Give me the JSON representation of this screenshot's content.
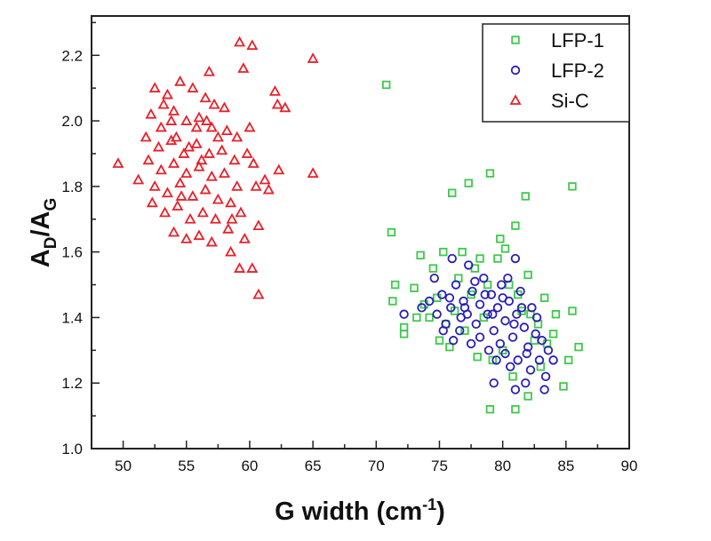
{
  "chart_data": {
    "type": "scatter",
    "title": "",
    "xlabel": {
      "main": "G width (cm",
      "sup": "-1",
      "end": ")"
    },
    "ylabel": {
      "a": "A",
      "sub1": "D",
      "slash": "/A",
      "sub2": "G"
    },
    "xlim": [
      47.5,
      90
    ],
    "ylim": [
      1.0,
      2.32
    ],
    "xticks": [
      "50",
      "55",
      "60",
      "65",
      "70",
      "75",
      "80",
      "85",
      "90"
    ],
    "xtick_values": [
      50,
      55,
      60,
      65,
      70,
      75,
      80,
      85,
      90
    ],
    "yticks": [
      "1.0",
      "1.2",
      "1.4",
      "1.6",
      "1.8",
      "2.0",
      "2.2"
    ],
    "ytick_values": [
      1.0,
      1.2,
      1.4,
      1.6,
      1.8,
      2.0,
      2.2
    ],
    "grid": false,
    "legend": "top-right",
    "series": [
      {
        "name": "LFP-1",
        "marker": "square",
        "color": "#3ec94a",
        "points": [
          [
            70.8,
            2.11
          ],
          [
            71.2,
            1.66
          ],
          [
            76,
            1.78
          ],
          [
            77.3,
            1.81
          ],
          [
            79,
            1.84
          ],
          [
            81.8,
            1.77
          ],
          [
            85.5,
            1.8
          ],
          [
            81,
            1.68
          ],
          [
            79.8,
            1.64
          ],
          [
            71.5,
            1.5
          ],
          [
            71.3,
            1.45
          ],
          [
            72.2,
            1.37
          ],
          [
            72.2,
            1.35
          ],
          [
            79,
            1.12
          ],
          [
            81,
            1.12
          ],
          [
            84.8,
            1.19
          ],
          [
            86,
            1.31
          ],
          [
            85.5,
            1.42
          ],
          [
            85.2,
            1.27
          ],
          [
            82,
            1.16
          ],
          [
            78,
            1.28
          ],
          [
            73.5,
            1.59
          ],
          [
            74.5,
            1.55
          ],
          [
            75.3,
            1.6
          ],
          [
            76.8,
            1.6
          ],
          [
            78.2,
            1.58
          ],
          [
            80.2,
            1.61
          ],
          [
            82,
            1.53
          ],
          [
            83.3,
            1.46
          ],
          [
            84.2,
            1.41
          ],
          [
            73,
            1.49
          ],
          [
            73.8,
            1.44
          ],
          [
            74.2,
            1.4
          ],
          [
            75,
            1.33
          ],
          [
            75.8,
            1.31
          ],
          [
            76.5,
            1.52
          ],
          [
            77.5,
            1.47
          ],
          [
            78.8,
            1.5
          ],
          [
            80.5,
            1.5
          ],
          [
            81.5,
            1.42
          ],
          [
            82.8,
            1.38
          ],
          [
            83.5,
            1.32
          ],
          [
            83,
            1.25
          ],
          [
            80,
            1.3
          ],
          [
            79.2,
            1.27
          ],
          [
            77,
            1.36
          ],
          [
            74.8,
            1.46
          ],
          [
            76.2,
            1.42
          ],
          [
            78.5,
            1.4
          ],
          [
            81.2,
            1.47
          ],
          [
            82.5,
            1.33
          ],
          [
            84,
            1.35
          ],
          [
            80.8,
            1.22
          ],
          [
            77.8,
            1.55
          ],
          [
            75.5,
            1.38
          ],
          [
            73.2,
            1.4
          ],
          [
            79.6,
            1.58
          ],
          [
            82.2,
            1.41
          ]
        ]
      },
      {
        "name": "LFP-2",
        "marker": "circle",
        "color": "#2a1fb5",
        "points": [
          [
            72.2,
            1.41
          ],
          [
            76,
            1.58
          ],
          [
            77.3,
            1.56
          ],
          [
            81,
            1.58
          ],
          [
            81,
            1.18
          ],
          [
            83.3,
            1.18
          ],
          [
            84,
            1.27
          ],
          [
            79.3,
            1.2
          ],
          [
            74.2,
            1.45
          ],
          [
            74.8,
            1.41
          ],
          [
            75.2,
            1.47
          ],
          [
            75.5,
            1.38
          ],
          [
            75.9,
            1.43
          ],
          [
            76.3,
            1.5
          ],
          [
            76.6,
            1.36
          ],
          [
            76.9,
            1.45
          ],
          [
            77.2,
            1.41
          ],
          [
            77.6,
            1.48
          ],
          [
            77.9,
            1.38
          ],
          [
            78.2,
            1.44
          ],
          [
            78.5,
            1.52
          ],
          [
            78.8,
            1.41
          ],
          [
            79.1,
            1.47
          ],
          [
            79.3,
            1.36
          ],
          [
            79.6,
            1.43
          ],
          [
            79.9,
            1.5
          ],
          [
            80.2,
            1.39
          ],
          [
            80.5,
            1.45
          ],
          [
            80.8,
            1.34
          ],
          [
            81.1,
            1.41
          ],
          [
            81.4,
            1.48
          ],
          [
            81.7,
            1.37
          ],
          [
            82,
            1.31
          ],
          [
            82.3,
            1.43
          ],
          [
            82.6,
            1.35
          ],
          [
            82.9,
            1.27
          ],
          [
            83.1,
            1.33
          ],
          [
            83.4,
            1.22
          ],
          [
            82.2,
            1.24
          ],
          [
            81.8,
            1.2
          ],
          [
            81.2,
            1.27
          ],
          [
            80.6,
            1.25
          ],
          [
            80.2,
            1.29
          ],
          [
            79.8,
            1.32
          ],
          [
            79.5,
            1.27
          ],
          [
            78.9,
            1.3
          ],
          [
            78.2,
            1.34
          ],
          [
            77.5,
            1.32
          ],
          [
            76.7,
            1.4
          ],
          [
            76.1,
            1.33
          ],
          [
            75.3,
            1.36
          ],
          [
            74.6,
            1.52
          ],
          [
            75.8,
            1.46
          ],
          [
            77.8,
            1.51
          ],
          [
            80,
            1.46
          ],
          [
            81.5,
            1.43
          ],
          [
            82.7,
            1.4
          ],
          [
            83.6,
            1.3
          ],
          [
            78.6,
            1.47
          ],
          [
            80.9,
            1.38
          ],
          [
            79.2,
            1.41
          ],
          [
            77,
            1.43
          ],
          [
            81.9,
            1.29
          ],
          [
            80.4,
            1.52
          ],
          [
            73.6,
            1.43
          ]
        ]
      },
      {
        "name": "Si-C",
        "marker": "triangle",
        "color": "#e8202a",
        "points": [
          [
            59.2,
            2.24
          ],
          [
            60.2,
            2.23
          ],
          [
            65,
            2.19
          ],
          [
            59.5,
            2.16
          ],
          [
            62,
            2.09
          ],
          [
            62.2,
            2.05
          ],
          [
            62.8,
            2.04
          ],
          [
            56.8,
            2.15
          ],
          [
            49.6,
            1.87
          ],
          [
            51.2,
            1.82
          ],
          [
            65,
            1.84
          ],
          [
            62.3,
            1.85
          ],
          [
            61.2,
            1.82
          ],
          [
            61.5,
            1.79
          ],
          [
            60.7,
            1.68
          ],
          [
            60.2,
            1.55
          ],
          [
            60.7,
            1.47
          ],
          [
            59.2,
            1.55
          ],
          [
            58.5,
            1.6
          ],
          [
            60,
            1.98
          ],
          [
            52.5,
            2.1
          ],
          [
            53.5,
            2.08
          ],
          [
            54.5,
            2.12
          ],
          [
            55.5,
            2.1
          ],
          [
            56.5,
            2.07
          ],
          [
            57.2,
            2.05
          ],
          [
            58,
            2.04
          ],
          [
            52.2,
            2.02
          ],
          [
            53,
            1.98
          ],
          [
            54,
            2.03
          ],
          [
            55,
            2.0
          ],
          [
            56,
            2.01
          ],
          [
            57,
            1.98
          ],
          [
            58.2,
            1.97
          ],
          [
            59,
            1.95
          ],
          [
            51.8,
            1.95
          ],
          [
            52.8,
            1.92
          ],
          [
            53.8,
            1.94
          ],
          [
            54.8,
            1.9
          ],
          [
            55.8,
            1.93
          ],
          [
            56.8,
            1.9
          ],
          [
            57.8,
            1.91
          ],
          [
            58.8,
            1.88
          ],
          [
            59.8,
            1.9
          ],
          [
            60.3,
            1.87
          ],
          [
            52,
            1.88
          ],
          [
            53,
            1.85
          ],
          [
            54,
            1.87
          ],
          [
            55,
            1.84
          ],
          [
            56,
            1.86
          ],
          [
            57,
            1.83
          ],
          [
            58,
            1.84
          ],
          [
            59,
            1.8
          ],
          [
            52.5,
            1.8
          ],
          [
            53.5,
            1.78
          ],
          [
            54.5,
            1.81
          ],
          [
            55.5,
            1.77
          ],
          [
            56.5,
            1.79
          ],
          [
            57.5,
            1.76
          ],
          [
            58.5,
            1.75
          ],
          [
            52.3,
            1.75
          ],
          [
            53.3,
            1.72
          ],
          [
            54.3,
            1.74
          ],
          [
            55.3,
            1.7
          ],
          [
            56.3,
            1.72
          ],
          [
            57.3,
            1.7
          ],
          [
            58.3,
            1.67
          ],
          [
            54,
            1.66
          ],
          [
            55,
            1.64
          ],
          [
            56,
            1.65
          ],
          [
            57,
            1.63
          ],
          [
            59.3,
            1.72
          ],
          [
            55.8,
            1.98
          ],
          [
            54.2,
            1.95
          ],
          [
            57.5,
            1.95
          ],
          [
            53.2,
            2.05
          ],
          [
            56.2,
            1.88
          ],
          [
            55.2,
            1.92
          ],
          [
            58.6,
            1.7
          ],
          [
            59.6,
            1.64
          ],
          [
            60.5,
            1.8
          ],
          [
            53.8,
            2.0
          ],
          [
            56.6,
            2.0
          ],
          [
            54.6,
            1.77
          ]
        ]
      }
    ]
  }
}
